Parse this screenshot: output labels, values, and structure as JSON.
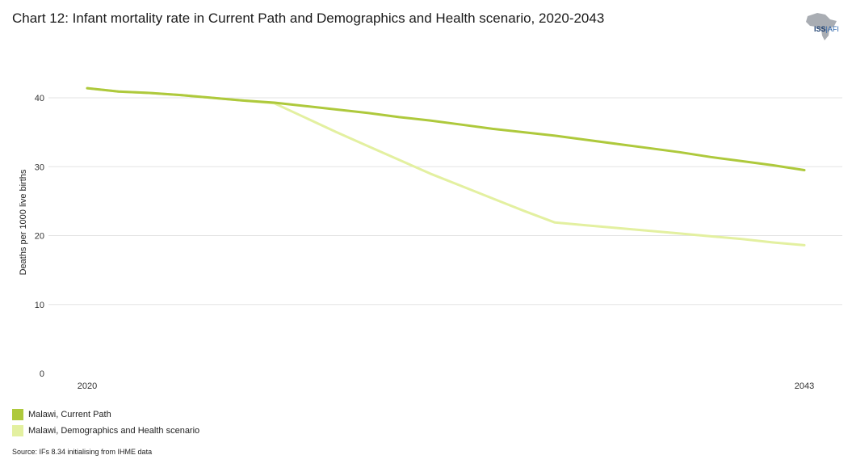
{
  "chart_data": {
    "type": "line",
    "title": "Chart 12: Infant mortality rate in Current Path and Demographics and Health scenario, 2020-2043",
    "xlabel": "",
    "ylabel": "Deaths per 1000 live births",
    "xlim": [
      2020,
      2043
    ],
    "ylim": [
      0,
      45
    ],
    "yticks": [
      0,
      10,
      20,
      30,
      40
    ],
    "xticks": [
      2020,
      2043
    ],
    "grid": true,
    "legend_position": "bottom-left",
    "series": [
      {
        "name": "Malawi, Current Path",
        "color": "#aec93c",
        "x": [
          2020,
          2021,
          2022,
          2023,
          2024,
          2025,
          2026,
          2027,
          2028,
          2029,
          2030,
          2031,
          2032,
          2033,
          2034,
          2035,
          2036,
          2037,
          2038,
          2039,
          2040,
          2041,
          2042,
          2043
        ],
        "values": [
          41.4,
          40.9,
          40.7,
          40.4,
          40.0,
          39.6,
          39.3,
          38.8,
          38.3,
          37.8,
          37.2,
          36.7,
          36.1,
          35.5,
          35.0,
          34.5,
          33.9,
          33.3,
          32.7,
          32.1,
          31.4,
          30.8,
          30.2,
          29.5
        ]
      },
      {
        "name": "Malawi, Demographics and Health scenario",
        "color": "#e3f0a0",
        "x": [
          2020,
          2021,
          2022,
          2023,
          2024,
          2025,
          2026,
          2027,
          2028,
          2029,
          2030,
          2031,
          2032,
          2033,
          2034,
          2035,
          2036,
          2037,
          2038,
          2039,
          2040,
          2041,
          2042,
          2043
        ],
        "values": [
          41.4,
          40.9,
          40.7,
          40.4,
          40.0,
          39.6,
          39.2,
          37.1,
          35.0,
          33.0,
          31.0,
          29.0,
          27.2,
          25.4,
          23.6,
          21.9,
          21.5,
          21.1,
          20.7,
          20.3,
          19.9,
          19.5,
          19.0,
          18.6
        ]
      }
    ]
  },
  "logo": {
    "iss": "ISS",
    "sep": "|",
    "afi": "AFI"
  },
  "source": "Source: IFs 8.34 initialising from IHME data"
}
